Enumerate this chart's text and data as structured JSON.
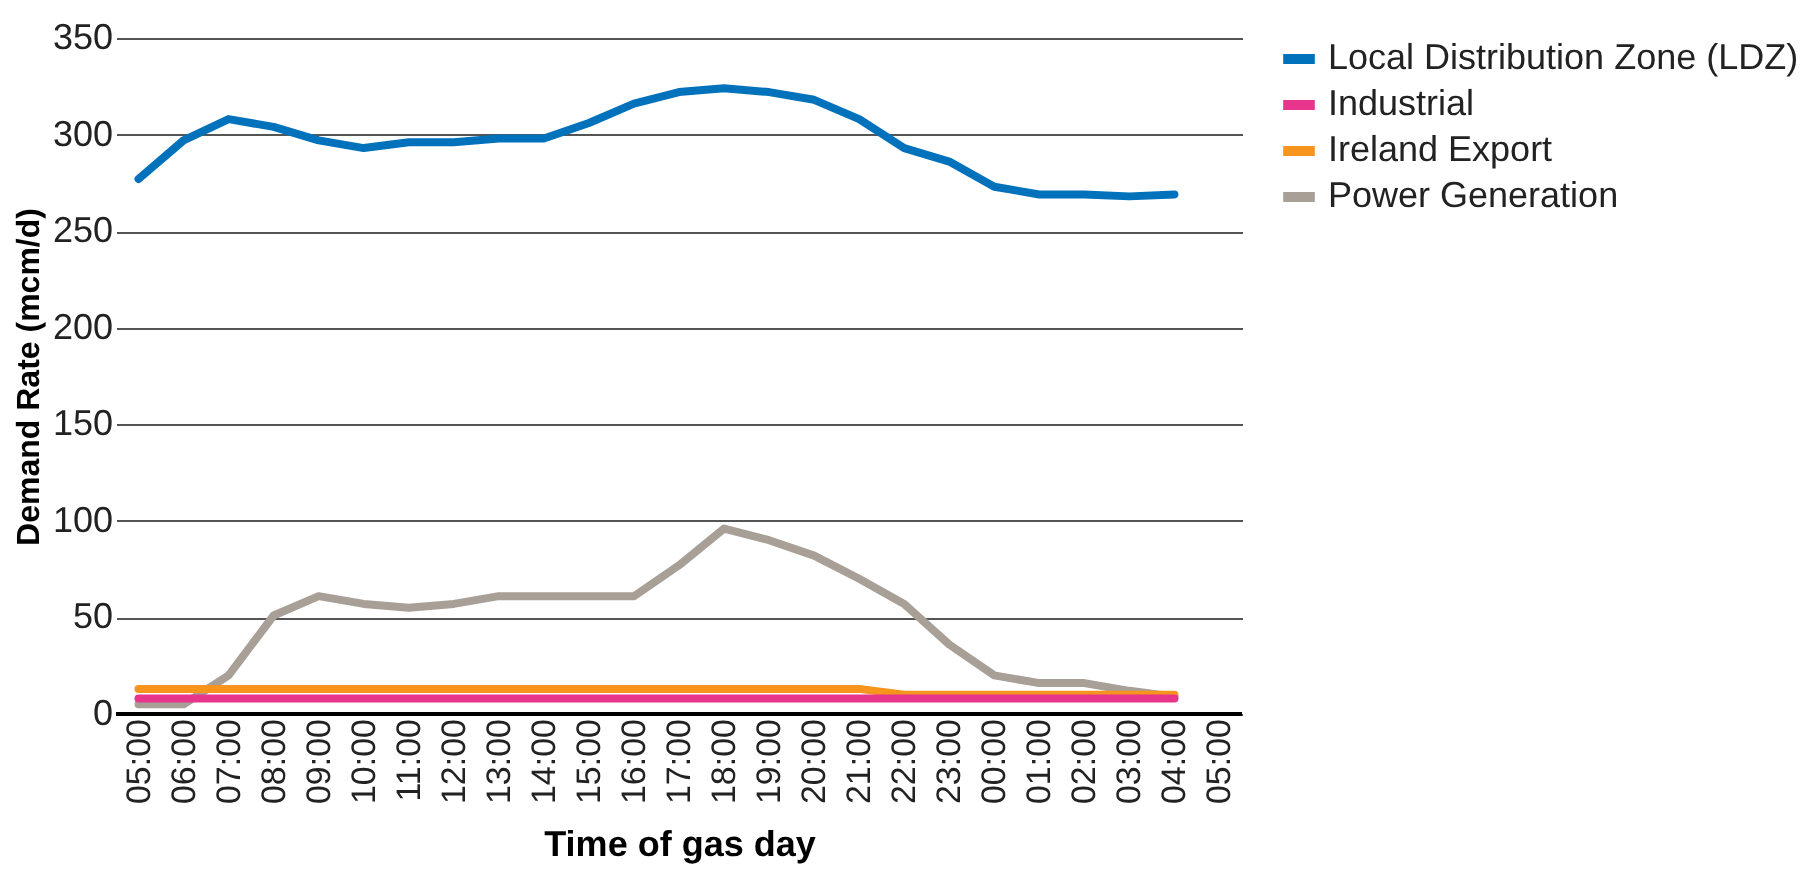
{
  "chart_data": {
    "type": "line",
    "xlabel": "Time of gas day",
    "ylabel": "Demand Rate (mcm/d)",
    "categories": [
      "05:00",
      "06:00",
      "07:00",
      "08:00",
      "09:00",
      "10:00",
      "11:00",
      "12:00",
      "13:00",
      "14:00",
      "15:00",
      "16:00",
      "17:00",
      "18:00",
      "19:00",
      "20:00",
      "21:00",
      "22:00",
      "23:00",
      "00:00",
      "01:00",
      "02:00",
      "03:00",
      "04:00",
      "05:00"
    ],
    "series": [
      {
        "name": "Local Distribution Zone (LDZ)",
        "color": "#0072bc",
        "values": [
          277,
          297,
          308,
          304,
          297,
          293,
          296,
          296,
          298,
          298,
          306,
          316,
          322,
          324,
          322,
          318,
          308,
          293,
          286,
          273,
          269,
          269,
          268,
          269,
          null
        ]
      },
      {
        "name": "Industrial",
        "color": "#e6358b",
        "values": [
          8,
          8,
          8,
          8,
          8,
          8,
          8,
          8,
          8,
          8,
          8,
          8,
          8,
          8,
          8,
          8,
          8,
          8,
          8,
          8,
          8,
          8,
          8,
          8,
          null
        ]
      },
      {
        "name": "Ireland Export",
        "color": "#f7941d",
        "values": [
          13,
          13,
          13,
          13,
          13,
          13,
          13,
          13,
          13,
          13,
          13,
          13,
          13,
          13,
          13,
          13,
          13,
          10,
          10,
          10,
          10,
          10,
          10,
          10,
          null
        ]
      },
      {
        "name": "Power Generation",
        "color": "#a89f97",
        "values": [
          5,
          5,
          20,
          51,
          61,
          57,
          55,
          57,
          61,
          61,
          61,
          61,
          77,
          96,
          90,
          82,
          70,
          57,
          36,
          20,
          16,
          16,
          12,
          9,
          null
        ]
      }
    ],
    "ylim": [
      0,
      350
    ],
    "yticks": [
      0,
      50,
      100,
      150,
      200,
      250,
      300,
      350
    ],
    "grid": "y",
    "legend": "right"
  }
}
